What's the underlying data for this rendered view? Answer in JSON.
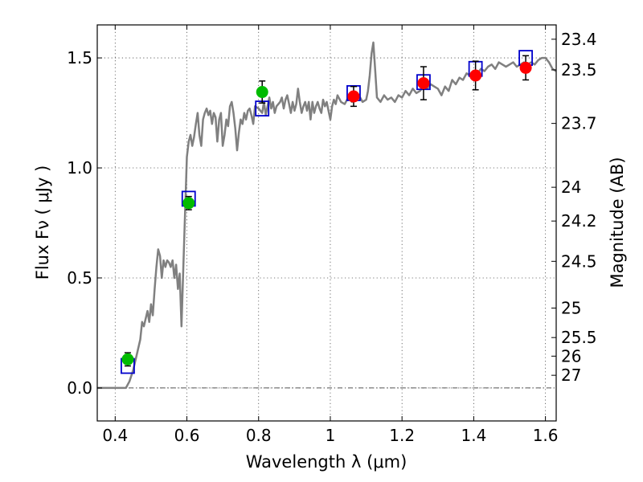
{
  "chart_data": {
    "type": "scatter",
    "xlabel": "Wavelength  λ (μm)",
    "ylabel": "Flux  Fν  ( μJy )",
    "ylabel_right": "Magnitude (AB)",
    "xlim": [
      0.35,
      1.63
    ],
    "ylim": [
      -0.15,
      1.65
    ],
    "grid": true,
    "x_ticks": [
      {
        "value": 0.4,
        "label": "0.4"
      },
      {
        "value": 0.6,
        "label": "0.6"
      },
      {
        "value": 0.8,
        "label": "0.8"
      },
      {
        "value": 1.0,
        "label": "1"
      },
      {
        "value": 1.2,
        "label": "1.2"
      },
      {
        "value": 1.4,
        "label": "1.4"
      },
      {
        "value": 1.6,
        "label": "1.6"
      }
    ],
    "y_ticks": [
      {
        "value": 0.0,
        "label": "0.0"
      },
      {
        "value": 0.5,
        "label": "0.5"
      },
      {
        "value": 1.0,
        "label": "1.0"
      },
      {
        "value": 1.5,
        "label": "1.5"
      }
    ],
    "mag_ticks": [
      {
        "value": 23.4,
        "label": "23.4"
      },
      {
        "value": 23.5,
        "label": "23.5"
      },
      {
        "value": 23.7,
        "label": "23.7"
      },
      {
        "value": 24,
        "label": "24"
      },
      {
        "value": 24.2,
        "label": "24.2"
      },
      {
        "value": 24.5,
        "label": "24.5"
      },
      {
        "value": 25,
        "label": "25"
      },
      {
        "value": 25.5,
        "label": "25.5"
      },
      {
        "value": 26,
        "label": "26"
      },
      {
        "value": 27,
        "label": "27"
      }
    ],
    "series": [
      {
        "name": "template_spectrum",
        "kind": "line",
        "color": "#808080",
        "points": [
          [
            0.35,
            0.0
          ],
          [
            0.43,
            0.0
          ],
          [
            0.44,
            0.03
          ],
          [
            0.45,
            0.08
          ],
          [
            0.46,
            0.15
          ],
          [
            0.47,
            0.22
          ],
          [
            0.475,
            0.3
          ],
          [
            0.48,
            0.28
          ],
          [
            0.49,
            0.35
          ],
          [
            0.495,
            0.3
          ],
          [
            0.5,
            0.38
          ],
          [
            0.505,
            0.33
          ],
          [
            0.51,
            0.45
          ],
          [
            0.515,
            0.55
          ],
          [
            0.52,
            0.63
          ],
          [
            0.525,
            0.6
          ],
          [
            0.53,
            0.5
          ],
          [
            0.535,
            0.58
          ],
          [
            0.54,
            0.55
          ],
          [
            0.545,
            0.58
          ],
          [
            0.55,
            0.57
          ],
          [
            0.555,
            0.55
          ],
          [
            0.56,
            0.58
          ],
          [
            0.565,
            0.5
          ],
          [
            0.57,
            0.56
          ],
          [
            0.575,
            0.45
          ],
          [
            0.58,
            0.52
          ],
          [
            0.585,
            0.28
          ],
          [
            0.59,
            0.55
          ],
          [
            0.595,
            0.8
          ],
          [
            0.6,
            1.05
          ],
          [
            0.605,
            1.12
          ],
          [
            0.61,
            1.15
          ],
          [
            0.615,
            1.1
          ],
          [
            0.62,
            1.14
          ],
          [
            0.625,
            1.2
          ],
          [
            0.63,
            1.25
          ],
          [
            0.635,
            1.15
          ],
          [
            0.64,
            1.1
          ],
          [
            0.645,
            1.22
          ],
          [
            0.65,
            1.25
          ],
          [
            0.655,
            1.27
          ],
          [
            0.66,
            1.24
          ],
          [
            0.665,
            1.26
          ],
          [
            0.67,
            1.2
          ],
          [
            0.675,
            1.25
          ],
          [
            0.68,
            1.23
          ],
          [
            0.685,
            1.12
          ],
          [
            0.69,
            1.22
          ],
          [
            0.695,
            1.25
          ],
          [
            0.7,
            1.1
          ],
          [
            0.705,
            1.15
          ],
          [
            0.71,
            1.22
          ],
          [
            0.715,
            1.19
          ],
          [
            0.72,
            1.28
          ],
          [
            0.725,
            1.3
          ],
          [
            0.73,
            1.25
          ],
          [
            0.735,
            1.18
          ],
          [
            0.74,
            1.08
          ],
          [
            0.745,
            1.16
          ],
          [
            0.75,
            1.22
          ],
          [
            0.755,
            1.2
          ],
          [
            0.76,
            1.25
          ],
          [
            0.765,
            1.22
          ],
          [
            0.77,
            1.26
          ],
          [
            0.775,
            1.27
          ],
          [
            0.78,
            1.24
          ],
          [
            0.785,
            1.2
          ],
          [
            0.79,
            1.28
          ],
          [
            0.8,
            1.27
          ],
          [
            0.81,
            1.25
          ],
          [
            0.815,
            1.3
          ],
          [
            0.82,
            1.24
          ],
          [
            0.825,
            1.28
          ],
          [
            0.83,
            1.32
          ],
          [
            0.835,
            1.27
          ],
          [
            0.84,
            1.3
          ],
          [
            0.845,
            1.25
          ],
          [
            0.85,
            1.28
          ],
          [
            0.86,
            1.3
          ],
          [
            0.865,
            1.32
          ],
          [
            0.87,
            1.27
          ],
          [
            0.875,
            1.31
          ],
          [
            0.88,
            1.33
          ],
          [
            0.885,
            1.29
          ],
          [
            0.89,
            1.25
          ],
          [
            0.895,
            1.3
          ],
          [
            0.9,
            1.26
          ],
          [
            0.905,
            1.29
          ],
          [
            0.91,
            1.36
          ],
          [
            0.915,
            1.3
          ],
          [
            0.92,
            1.25
          ],
          [
            0.925,
            1.28
          ],
          [
            0.93,
            1.3
          ],
          [
            0.935,
            1.26
          ],
          [
            0.94,
            1.3
          ],
          [
            0.945,
            1.22
          ],
          [
            0.95,
            1.3
          ],
          [
            0.955,
            1.25
          ],
          [
            0.96,
            1.28
          ],
          [
            0.965,
            1.3
          ],
          [
            0.97,
            1.27
          ],
          [
            0.975,
            1.25
          ],
          [
            0.98,
            1.31
          ],
          [
            0.985,
            1.28
          ],
          [
            0.99,
            1.3
          ],
          [
            0.995,
            1.26
          ],
          [
            1.0,
            1.22
          ],
          [
            1.005,
            1.28
          ],
          [
            1.01,
            1.31
          ],
          [
            1.015,
            1.29
          ],
          [
            1.02,
            1.33
          ],
          [
            1.03,
            1.3
          ],
          [
            1.04,
            1.29
          ],
          [
            1.05,
            1.32
          ],
          [
            1.06,
            1.3
          ],
          [
            1.07,
            1.31
          ],
          [
            1.08,
            1.33
          ],
          [
            1.09,
            1.3
          ],
          [
            1.1,
            1.31
          ],
          [
            1.105,
            1.35
          ],
          [
            1.11,
            1.42
          ],
          [
            1.115,
            1.52
          ],
          [
            1.12,
            1.57
          ],
          [
            1.125,
            1.45
          ],
          [
            1.13,
            1.32
          ],
          [
            1.14,
            1.3
          ],
          [
            1.15,
            1.33
          ],
          [
            1.16,
            1.31
          ],
          [
            1.17,
            1.32
          ],
          [
            1.18,
            1.3
          ],
          [
            1.19,
            1.33
          ],
          [
            1.2,
            1.32
          ],
          [
            1.21,
            1.35
          ],
          [
            1.22,
            1.33
          ],
          [
            1.23,
            1.36
          ],
          [
            1.24,
            1.34
          ],
          [
            1.25,
            1.35
          ],
          [
            1.26,
            1.37
          ],
          [
            1.27,
            1.36
          ],
          [
            1.28,
            1.38
          ],
          [
            1.29,
            1.37
          ],
          [
            1.3,
            1.36
          ],
          [
            1.31,
            1.33
          ],
          [
            1.32,
            1.37
          ],
          [
            1.33,
            1.35
          ],
          [
            1.34,
            1.4
          ],
          [
            1.35,
            1.38
          ],
          [
            1.36,
            1.41
          ],
          [
            1.37,
            1.4
          ],
          [
            1.38,
            1.43
          ],
          [
            1.39,
            1.42
          ],
          [
            1.4,
            1.44
          ],
          [
            1.41,
            1.43
          ],
          [
            1.42,
            1.45
          ],
          [
            1.43,
            1.44
          ],
          [
            1.44,
            1.46
          ],
          [
            1.45,
            1.47
          ],
          [
            1.46,
            1.45
          ],
          [
            1.47,
            1.48
          ],
          [
            1.48,
            1.47
          ],
          [
            1.49,
            1.46
          ],
          [
            1.5,
            1.47
          ],
          [
            1.51,
            1.48
          ],
          [
            1.52,
            1.46
          ],
          [
            1.53,
            1.47
          ],
          [
            1.54,
            1.48
          ],
          [
            1.55,
            1.47
          ],
          [
            1.56,
            1.48
          ],
          [
            1.57,
            1.47
          ],
          [
            1.58,
            1.49
          ],
          [
            1.59,
            1.5
          ],
          [
            1.6,
            1.5
          ],
          [
            1.61,
            1.48
          ],
          [
            1.62,
            1.45
          ],
          [
            1.63,
            1.44
          ]
        ]
      },
      {
        "name": "model_photometry",
        "kind": "open_square",
        "color": "#0000cc",
        "points": [
          [
            0.435,
            0.1
          ],
          [
            0.605,
            0.86
          ],
          [
            0.81,
            1.27
          ],
          [
            1.065,
            1.34
          ],
          [
            1.26,
            1.39
          ],
          [
            1.405,
            1.45
          ],
          [
            1.545,
            1.5
          ]
        ]
      },
      {
        "name": "observed_optical",
        "kind": "filled_circle",
        "color": "#00bb00",
        "points": [
          [
            0.435,
            0.13,
            0.03
          ],
          [
            0.605,
            0.84,
            0.03
          ],
          [
            0.81,
            1.345,
            0.05
          ]
        ]
      },
      {
        "name": "observed_nir",
        "kind": "filled_circle",
        "color": "#ff0000",
        "points": [
          [
            1.065,
            1.325,
            0.045
          ],
          [
            1.26,
            1.385,
            0.075
          ],
          [
            1.405,
            1.42,
            0.065
          ],
          [
            1.545,
            1.455,
            0.055
          ]
        ]
      }
    ]
  }
}
